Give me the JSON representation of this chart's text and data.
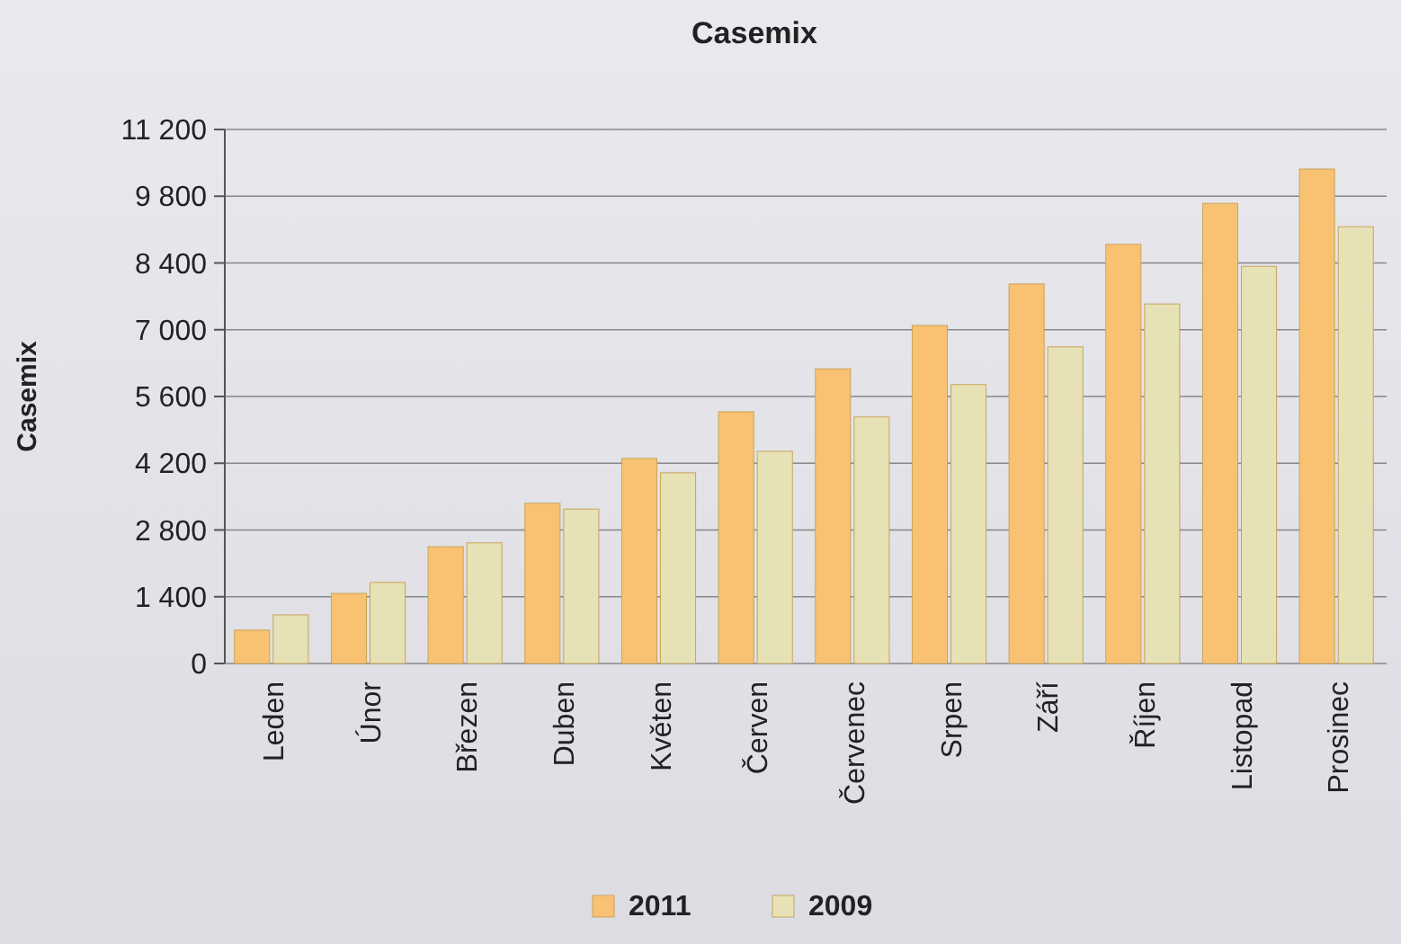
{
  "chart_data": {
    "type": "bar",
    "title": "Casemix",
    "ylabel": "Casemix",
    "categories": [
      "Leden",
      "Únor",
      "Březen",
      "Duben",
      "Květen",
      "Červen",
      "Červenec",
      "Srpen",
      "Září",
      "Říjen",
      "Listopad",
      "Prosinec"
    ],
    "series": [
      {
        "name": "2011",
        "color": "#f8c272",
        "values": [
          700,
          1470,
          2450,
          3360,
          4300,
          5280,
          6180,
          7090,
          7960,
          8790,
          9650,
          10370
        ]
      },
      {
        "name": "2009",
        "color": "#e6e2b6",
        "values": [
          1020,
          1700,
          2530,
          3240,
          4000,
          4450,
          5170,
          5850,
          6640,
          7540,
          8330,
          9160
        ]
      }
    ],
    "ylim": [
      0,
      11200
    ],
    "yticks": [
      0,
      {
        "value": 1400,
        "label": "1 400"
      },
      {
        "value": 2800,
        "label": "2 800"
      },
      {
        "value": 4200,
        "label": "4 200"
      },
      {
        "value": 5600,
        "label": "5 600"
      },
      {
        "value": 7000,
        "label": "7 000"
      },
      {
        "value": 8400,
        "label": "8 400"
      },
      {
        "value": 9800,
        "label": "9 800"
      },
      {
        "value": 11200,
        "label": "11 200"
      }
    ],
    "grid": "y",
    "legend": "bottom"
  }
}
